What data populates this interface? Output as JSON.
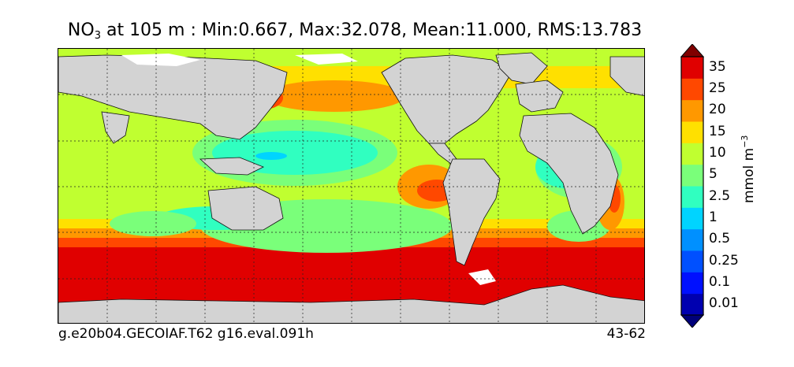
{
  "title": {
    "species": "NO",
    "subscript": "3",
    "rest": " at 105 m : Min:0.667, Max:32.078, Mean:11.000, RMS:13.783"
  },
  "footer": {
    "run": "g.e20b04.GECOIAF.T62 g16.eval.091h",
    "years": "43-62"
  },
  "colorbar": {
    "unit_base": "mmol m",
    "unit_exp": "−3",
    "levels": [
      {
        "label": "0.01",
        "color": "#0000b0"
      },
      {
        "label": "0.1",
        "color": "#0010ff"
      },
      {
        "label": "0.25",
        "color": "#0050ff"
      },
      {
        "label": "0.5",
        "color": "#0090ff"
      },
      {
        "label": "1",
        "color": "#00d4ff"
      },
      {
        "label": "2.5",
        "color": "#30ffc0"
      },
      {
        "label": "5",
        "color": "#7aff7a"
      },
      {
        "label": "10",
        "color": "#c0ff30"
      },
      {
        "label": "15",
        "color": "#ffe000"
      },
      {
        "label": "20",
        "color": "#ff9800"
      },
      {
        "label": "25",
        "color": "#ff4800"
      },
      {
        "label": "35",
        "color": "#e00000"
      }
    ],
    "under_color": "#00007a",
    "over_color": "#800000"
  },
  "colors": {
    "land": "#d3d3d3",
    "sea_ice": "#ffffff"
  }
}
